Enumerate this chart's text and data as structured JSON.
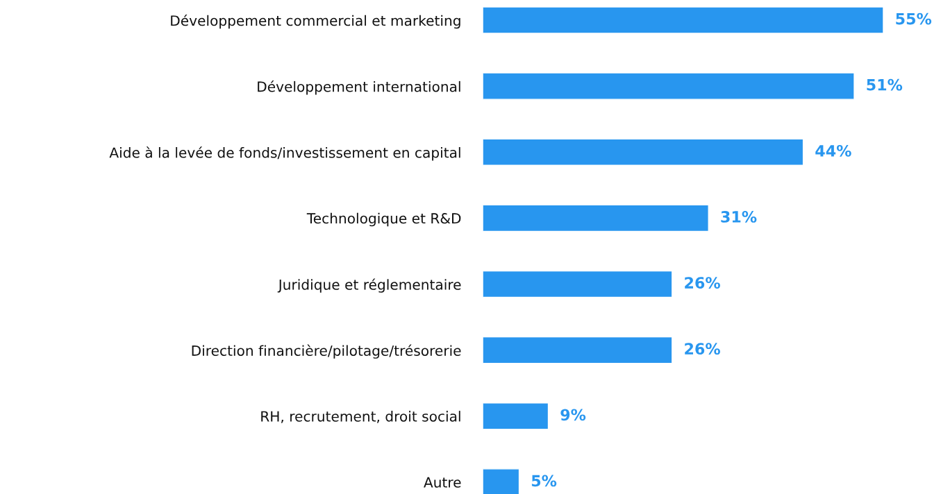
{
  "chart_data": {
    "type": "bar",
    "orientation": "horizontal",
    "categories": [
      "Développement commercial et marketing",
      "Développement international",
      "Aide à la levée de fonds/investissement en capital",
      "Technologique et R&D",
      "Juridique et réglementaire",
      "Direction financière/pilotage/trésorerie",
      "RH, recrutement, droit social",
      "Autre"
    ],
    "values": [
      55,
      51,
      44,
      31,
      26,
      26,
      9,
      5
    ],
    "value_labels": [
      "55%",
      "51%",
      "44%",
      "31%",
      "26%",
      "26%",
      "9%",
      "5%"
    ],
    "color": "#2896ef",
    "grid": false,
    "legend": false,
    "tick_labels": "y"
  }
}
